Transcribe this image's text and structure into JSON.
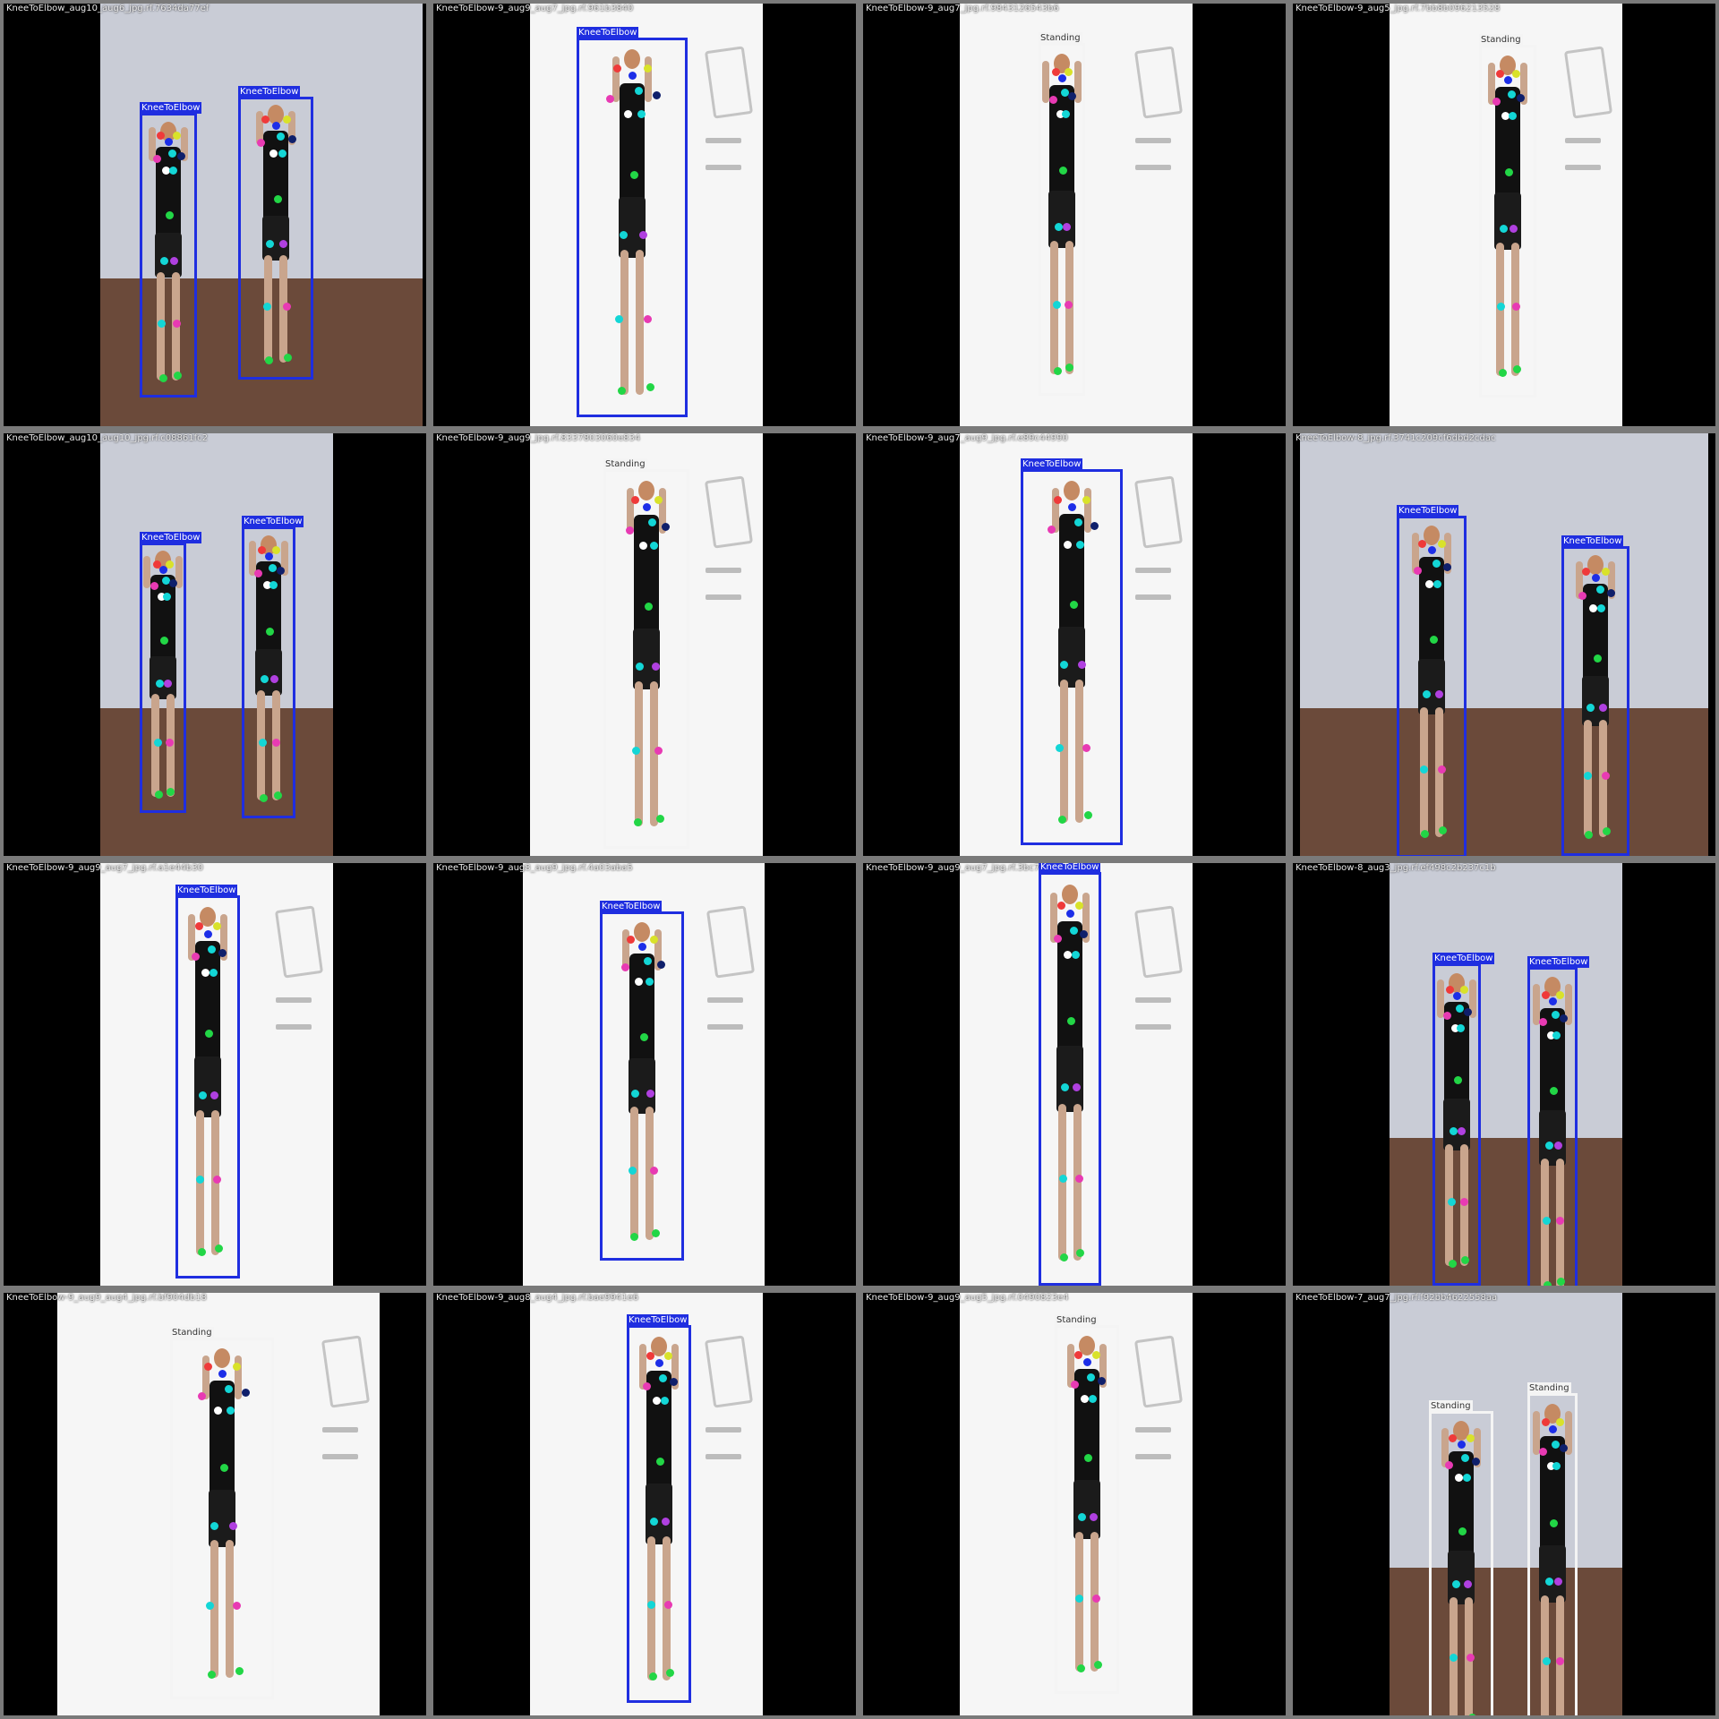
{
  "colors": {
    "box_blue": "#1f2ee0",
    "box_white": "#f4f4f4",
    "keypoints": [
      "#1c2ee8",
      "#ef3a3a",
      "#d9e22a",
      "#13d6d6",
      "#e83ab3",
      "#22d646",
      "#f06bd0",
      "#0f1f6b",
      "#b040e0",
      "#ffffff"
    ]
  },
  "tiles": [
    {
      "caption": "KneeToElbow_aug10_aug6_jpg.rf.7634da77ef",
      "scene": "room",
      "persons": [
        {
          "label": "KneeToElbow",
          "box": "blue"
        },
        {
          "label": "KneeToElbow",
          "box": "blue"
        }
      ]
    },
    {
      "caption": "KneeToElbow-9_aug9_aug7_jpg.rf.961b3840",
      "scene": "white",
      "persons": [
        {
          "label": "KneeToElbow",
          "box": "blue"
        }
      ]
    },
    {
      "caption": "KneeToElbow-9_aug7_jpg.rf.9843126543b6",
      "scene": "white",
      "persons": [
        {
          "label": "Standing",
          "box": "white"
        }
      ]
    },
    {
      "caption": "KneeToElbow-9_aug5_jpg.rf.7bb8b096213528",
      "scene": "white",
      "persons": [
        {
          "label": "Standing",
          "box": "white"
        }
      ]
    },
    {
      "caption": "KneeToElbow_aug10_aug10_jpg.rf.c08861fc2",
      "scene": "room",
      "persons": [
        {
          "label": "KneeToElbow",
          "box": "blue"
        },
        {
          "label": "KneeToElbow",
          "box": "blue"
        }
      ]
    },
    {
      "caption": "KneeToElbow-9_aug9_jpg.rf.8337803060e834",
      "scene": "white",
      "persons": [
        {
          "label": "Standing",
          "box": "white"
        }
      ]
    },
    {
      "caption": "KneeToElbow-9_aug7_aug9_jpg.rf.e89c44990",
      "scene": "white",
      "persons": [
        {
          "label": "KneeToElbow",
          "box": "blue"
        }
      ]
    },
    {
      "caption": "KneeToElbow-8_jpg.rf.3741c209cf6dbd2cdac",
      "scene": "room",
      "persons": [
        {
          "label": "KneeToElbow",
          "box": "blue"
        },
        {
          "label": "KneeToElbow",
          "box": "blue"
        }
      ]
    },
    {
      "caption": "KneeToElbow-9_aug9_aug7_jpg.rf.a1e44b30",
      "scene": "white",
      "persons": [
        {
          "label": "KneeToElbow",
          "box": "blue"
        }
      ]
    },
    {
      "caption": "KneeToElbow-9_aug8_aug9_jpg.rf.4a03aba5",
      "scene": "white",
      "persons": [
        {
          "label": "KneeToElbow",
          "box": "blue"
        }
      ]
    },
    {
      "caption": "KneeToElbow-9_aug9_aug7_jpg.rf.3bc7",
      "scene": "white",
      "persons": [
        {
          "label": "KneeToElbow",
          "box": "blue"
        }
      ]
    },
    {
      "caption": "KneeToElbow-8_aug3_jpg.rf.ef498c2b237c1b",
      "scene": "room",
      "persons": [
        {
          "label": "KneeToElbow",
          "box": "blue"
        },
        {
          "label": "KneeToElbow",
          "box": "blue"
        }
      ]
    },
    {
      "caption": "KneeToElbow-9_aug9_aug4_jpg.rf.bf904db18",
      "scene": "white",
      "persons": [
        {
          "label": "Standing",
          "box": "white"
        }
      ]
    },
    {
      "caption": "KneeToElbow-9_aug8_aug4_jpg.rf.bae9941e6",
      "scene": "white",
      "persons": [
        {
          "label": "KneeToElbow",
          "box": "blue"
        }
      ]
    },
    {
      "caption": "KneeToElbow-9_aug9_aug5_jpg.rf.0490823e4",
      "scene": "white",
      "persons": [
        {
          "label": "Standing",
          "box": "white"
        }
      ]
    },
    {
      "caption": "KneeToElbow-7_aug7_jpg.rf.f92bb4622558aa",
      "scene": "room",
      "persons": [
        {
          "label": "Standing",
          "box": "white"
        },
        {
          "label": "Standing",
          "box": "white"
        }
      ]
    }
  ]
}
